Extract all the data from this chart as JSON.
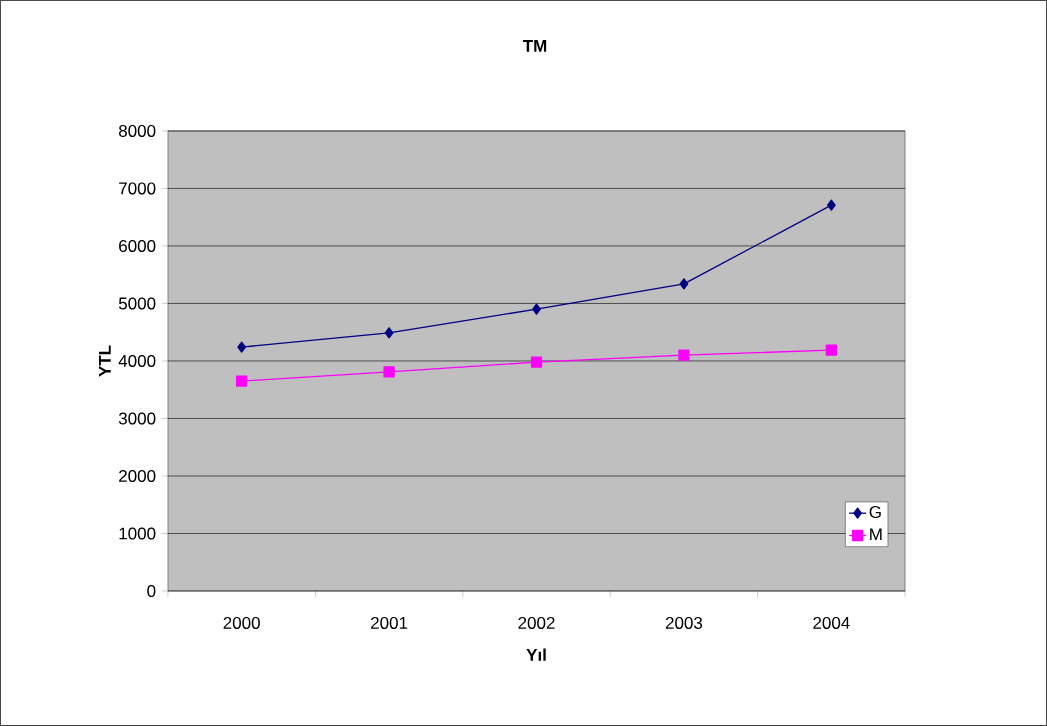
{
  "chart_data": {
    "type": "line",
    "title": "TM",
    "xlabel": "Yıl",
    "ylabel": "YTL",
    "categories": [
      "2000",
      "2001",
      "2002",
      "2003",
      "2004"
    ],
    "series": [
      {
        "name": "G",
        "color": "#000080",
        "marker": "diamond",
        "values": [
          4240,
          4490,
          4900,
          5340,
          6710
        ]
      },
      {
        "name": "M",
        "color": "#ff00ff",
        "marker": "square",
        "values": [
          3650,
          3810,
          3980,
          4100,
          4190
        ]
      }
    ],
    "ylim": [
      0,
      8000
    ],
    "yticks": [
      0,
      1000,
      2000,
      3000,
      4000,
      5000,
      6000,
      7000,
      8000
    ],
    "grid": "y",
    "legend": "bottom right",
    "line_style": "solid"
  }
}
